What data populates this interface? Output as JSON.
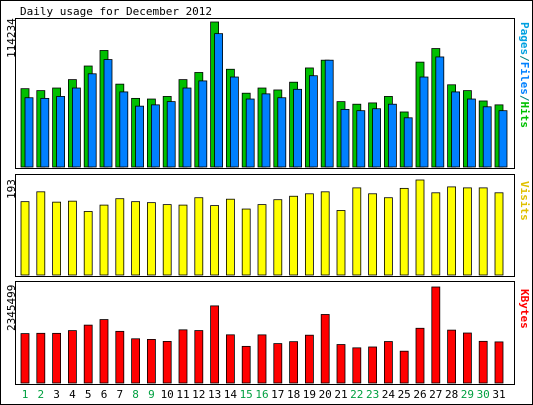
{
  "chart_data": {
    "type": "bar",
    "title": "Daily usage for December 2012",
    "days": [
      "1",
      "2",
      "3",
      "4",
      "5",
      "6",
      "7",
      "8",
      "9",
      "10",
      "11",
      "12",
      "13",
      "14",
      "15",
      "16",
      "17",
      "18",
      "19",
      "20",
      "21",
      "22",
      "23",
      "24",
      "25",
      "26",
      "27",
      "28",
      "29",
      "30",
      "31"
    ],
    "weekend_days": [
      1,
      2,
      8,
      9,
      15,
      16,
      22,
      23,
      29,
      30
    ],
    "colors": {
      "hits": "#00c000",
      "files": "#0080ff",
      "visits": "#ffff00",
      "kbytes": "#ff0000",
      "weekday_label": "#000000",
      "weekend_label": "#00a040"
    },
    "panels": [
      {
        "id": "hits-files",
        "ymax_label": "114234",
        "side_label": [
          {
            "text": "Pages",
            "color": "#00a0e0"
          },
          {
            "text": "/",
            "color": "#008080"
          },
          {
            "text": "Files",
            "color": "#0080ff"
          },
          {
            "text": "/",
            "color": "#008080"
          },
          {
            "text": "Hits",
            "color": "#00c000"
          }
        ],
        "series": [
          {
            "name": "Hits",
            "values": [
              60500,
              59000,
              61000,
              67500,
              78000,
              90000,
              64000,
              53000,
              52500,
              54500,
              67500,
              73000,
              112000,
              75500,
              57000,
              61000,
              59500,
              65500,
              76500,
              82500,
              50500,
              48500,
              49500,
              54500,
              42500,
              81000,
              91500,
              63500,
              59000,
              51000,
              48000
            ]
          },
          {
            "name": "Files",
            "values": [
              53500,
              53000,
              54500,
              61000,
              72000,
              83000,
              58000,
              47000,
              48000,
              50500,
              61000,
              66500,
              103000,
              69500,
              52500,
              56500,
              53500,
              60000,
              70500,
              82500,
              44500,
              43500,
              45000,
              48500,
              38000,
              69500,
              85000,
              58000,
              52500,
              46500,
              43500
            ]
          }
        ]
      },
      {
        "id": "visits",
        "ymax_label": "193",
        "side_label": [
          {
            "text": "Visits",
            "color": "#e0c000"
          }
        ],
        "series": [
          {
            "name": "Visits",
            "values": [
              149,
              169,
              148,
              150,
              129,
              142,
              155,
              149,
              147,
              143,
              142,
              157,
              141,
              154,
              134,
              143,
              153,
              160,
              165,
              169,
              131,
              177,
              165,
              157,
              176,
              193,
              167,
              179,
              177,
              177,
              167
            ]
          }
        ]
      },
      {
        "id": "kbytes",
        "ymax_label": "2345499",
        "side_label": [
          {
            "text": "KBytes",
            "color": "#ff0000"
          }
        ],
        "series": [
          {
            "name": "KBytes",
            "values": [
              1207000,
              1214000,
              1213000,
              1280000,
              1414000,
              1550000,
              1262000,
              1080000,
              1065000,
              1016000,
              1299000,
              1281000,
              1884000,
              1177000,
              895000,
              1176000,
              963000,
              1010000,
              1168000,
              1674000,
              940000,
              859000,
              880000,
              1013000,
              777000,
              1337000,
              2345499,
              1292000,
              1221000,
              1018000,
              1004000
            ]
          }
        ]
      }
    ]
  }
}
